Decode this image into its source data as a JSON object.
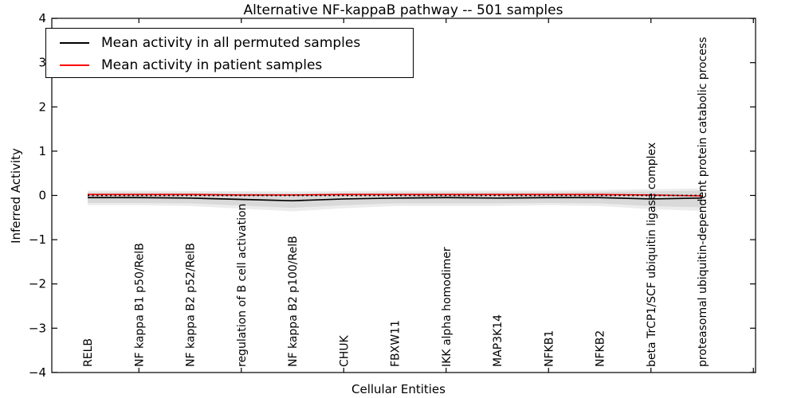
{
  "figure": {
    "title": "Alternative NF-kappaB pathway -- 501 samples",
    "xlabel": "Cellular Entities",
    "ylabel": "Inferred Activity"
  },
  "legend": {
    "position": "upper left",
    "entries": [
      {
        "label": "Mean activity in all permuted samples",
        "color": "#000000"
      },
      {
        "label": "Mean activity in patient samples",
        "color": "#ff0000"
      }
    ]
  },
  "chart_data": {
    "type": "line",
    "title": "Alternative NF-kappaB pathway -- 501 samples",
    "xlabel": "Cellular Entities",
    "ylabel": "Inferred Activity",
    "ylim": [
      -4,
      4
    ],
    "yticks": [
      4,
      3,
      2,
      1,
      0,
      -1,
      -2,
      -3,
      -4
    ],
    "grid": false,
    "legend_position": "upper left",
    "categories": [
      "RELB",
      "NF kappa B1 p50/RelB",
      "NF kappa B2 p52/RelB",
      "regulation of B cell activation",
      "NF kappa B2 p100/RelB",
      "CHUK",
      "FBXW11",
      "IKK alpha homodimer",
      "MAP3K14",
      "NFKB1",
      "NFKB2",
      "beta TrCP1/SCF ubiquitin ligase complex",
      "proteasomal ubiquitin-dependent protein catabolic process"
    ],
    "series": [
      {
        "name": "Mean activity in all permuted samples",
        "color": "#000000",
        "style": "solid",
        "values": [
          -0.05,
          -0.05,
          -0.06,
          -0.09,
          -0.12,
          -0.08,
          -0.06,
          -0.05,
          -0.06,
          -0.05,
          -0.05,
          -0.08,
          -0.06
        ]
      },
      {
        "name": "Mean activity in patient samples",
        "color": "#ff0000",
        "style": "solid",
        "values": [
          0.02,
          0.02,
          0.02,
          0.01,
          0.01,
          0.02,
          0.02,
          0.02,
          0.02,
          0.02,
          0.02,
          0.01,
          -0.01
        ]
      },
      {
        "name": "zero reference line",
        "color": "#000000",
        "style": "dotted",
        "values": [
          0,
          0,
          0,
          0,
          0,
          0,
          0,
          0,
          0,
          0,
          0,
          0,
          0
        ]
      }
    ],
    "bands": [
      {
        "name": "permuted activity outer band",
        "color": "#ececec",
        "upper": [
          0.11,
          0.11,
          0.1,
          0.1,
          0.09,
          0.1,
          0.11,
          0.11,
          0.11,
          0.11,
          0.12,
          0.14,
          0.16
        ],
        "lower": [
          -0.22,
          -0.22,
          -0.24,
          -0.3,
          -0.36,
          -0.29,
          -0.24,
          -0.24,
          -0.24,
          -0.22,
          -0.24,
          -0.31,
          -0.35
        ]
      },
      {
        "name": "permuted activity std band",
        "color": "#d9d9d9",
        "upper": [
          0.07,
          0.07,
          0.06,
          0.06,
          0.05,
          0.06,
          0.07,
          0.07,
          0.07,
          0.07,
          0.08,
          0.09,
          0.11
        ],
        "lower": [
          -0.17,
          -0.17,
          -0.18,
          -0.23,
          -0.28,
          -0.22,
          -0.18,
          -0.18,
          -0.18,
          -0.17,
          -0.18,
          -0.24,
          -0.27
        ]
      }
    ]
  }
}
